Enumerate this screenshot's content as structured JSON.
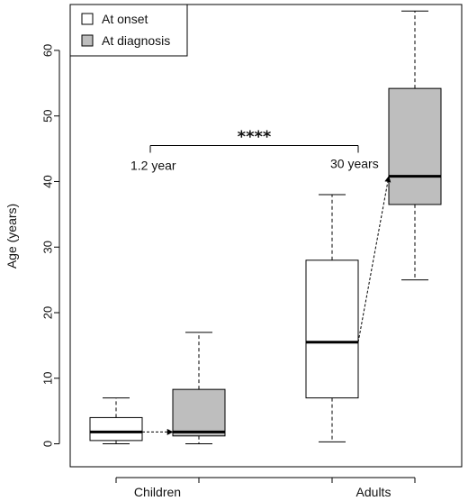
{
  "chart_data": {
    "type": "box",
    "ylabel": "Age (years)",
    "ylim": [
      -3.5,
      67
    ],
    "y_ticks": [
      0,
      10,
      20,
      30,
      40,
      50,
      60
    ],
    "categories": [
      "Children",
      "Adults"
    ],
    "legend": {
      "position": "top-left",
      "entries": [
        {
          "label": "At onset",
          "fill": "#ffffff"
        },
        {
          "label": "At diagnosis",
          "fill": "#bebebe"
        }
      ]
    },
    "series": [
      {
        "name": "At onset",
        "fill": "#ffffff",
        "boxes": [
          {
            "category": "Children",
            "min": 0,
            "q1": 0.5,
            "median": 1.8,
            "q3": 4,
            "max": 7
          },
          {
            "category": "Adults",
            "min": 0.3,
            "q1": 7,
            "median": 15.5,
            "q3": 28,
            "max": 38
          }
        ]
      },
      {
        "name": "At diagnosis",
        "fill": "#bebebe",
        "boxes": [
          {
            "category": "Children",
            "min": 0,
            "q1": 1.2,
            "median": 1.8,
            "q3": 8.3,
            "max": 17
          },
          {
            "category": "Adults",
            "min": 25,
            "q1": 36.5,
            "median": 40.8,
            "q3": 54.2,
            "max": 66
          }
        ]
      }
    ],
    "annotations": {
      "significance": "****",
      "bracket_y": 45.5,
      "left_label": "1.2 year",
      "right_label": "30 years",
      "arrows": [
        {
          "from_series": 0,
          "to_series": 1,
          "category": "Children"
        },
        {
          "from_series": 0,
          "to_series": 1,
          "category": "Adults"
        }
      ]
    }
  }
}
